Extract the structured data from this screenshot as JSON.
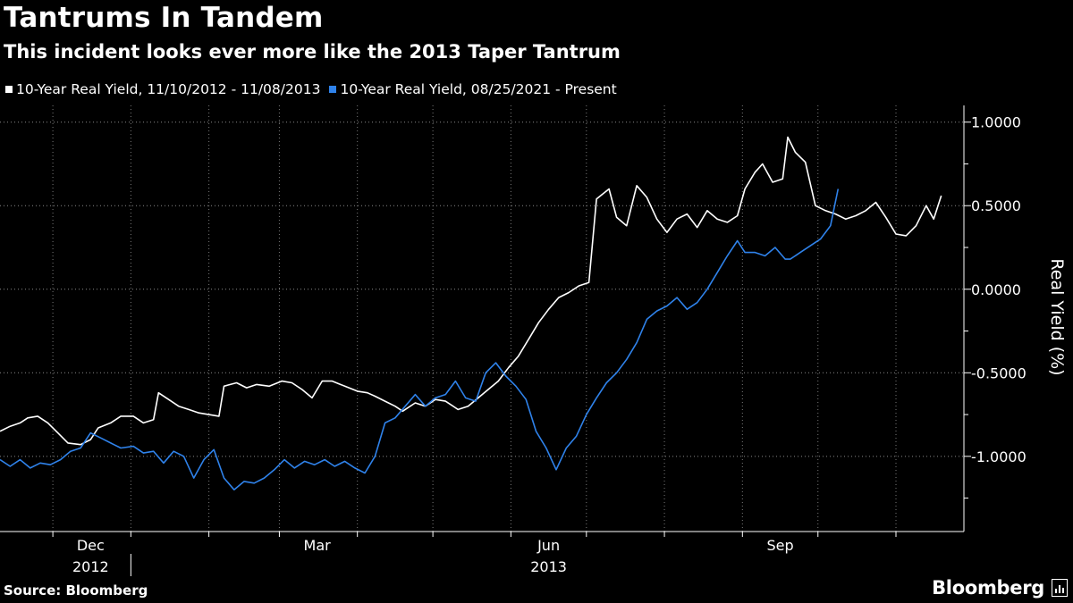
{
  "chart_data": {
    "type": "line",
    "title": "Tantrums In Tandem",
    "subtitle": "This incident looks ever more like the 2013 Taper Tantrum",
    "ylabel": "Real Yield (%)",
    "ylim": [
      -1.45,
      1.1
    ],
    "yticks": [
      1.0,
      0.5,
      0.0,
      -0.5,
      -1.0
    ],
    "ytick_labels": [
      "1.0000",
      "0.5000",
      "0.0000",
      "-0.5000",
      "-1.0000"
    ],
    "xlim": [
      "2012-11-10",
      "2013-11-28"
    ],
    "xticks": [
      {
        "date": "2012-12-01",
        "label": "Dec"
      },
      {
        "date": "2013-03-01",
        "label": "Mar"
      },
      {
        "date": "2013-06-01",
        "label": "Jun"
      },
      {
        "date": "2013-09-01",
        "label": "Sep"
      }
    ],
    "minor_ticks": [
      "2013-01-01",
      "2013-02-01",
      "2013-04-01",
      "2013-05-01",
      "2013-07-01",
      "2013-08-01",
      "2013-10-01",
      "2013-11-01"
    ],
    "year_labels": [
      {
        "date": "2012-12-01",
        "label": "2012"
      },
      {
        "date": "2013-06-01",
        "label": "2013"
      }
    ],
    "year_divider": "2013-01-01",
    "grid": true,
    "legend_position": "top-left",
    "series": [
      {
        "name": "10-Year Real Yield, 11/10/2012 - 11/08/2013",
        "color": "#ffffff",
        "points": [
          [
            "2012-11-10",
            -0.85
          ],
          [
            "2012-11-14",
            -0.82
          ],
          [
            "2012-11-18",
            -0.8
          ],
          [
            "2012-11-21",
            -0.77
          ],
          [
            "2012-11-25",
            -0.76
          ],
          [
            "2012-11-29",
            -0.8
          ],
          [
            "2012-12-03",
            -0.86
          ],
          [
            "2012-12-07",
            -0.92
          ],
          [
            "2012-12-12",
            -0.93
          ],
          [
            "2012-12-16",
            -0.9
          ],
          [
            "2012-12-19",
            -0.83
          ],
          [
            "2012-12-24",
            -0.8
          ],
          [
            "2012-12-28",
            -0.76
          ],
          [
            "2013-01-02",
            -0.76
          ],
          [
            "2013-01-06",
            -0.8
          ],
          [
            "2013-01-10",
            -0.78
          ],
          [
            "2013-01-12",
            -0.62
          ],
          [
            "2013-01-16",
            -0.66
          ],
          [
            "2013-01-20",
            -0.7
          ],
          [
            "2013-01-24",
            -0.72
          ],
          [
            "2013-01-28",
            -0.74
          ],
          [
            "2013-02-01",
            -0.75
          ],
          [
            "2013-02-05",
            -0.76
          ],
          [
            "2013-02-07",
            -0.58
          ],
          [
            "2013-02-12",
            -0.56
          ],
          [
            "2013-02-16",
            -0.59
          ],
          [
            "2013-02-20",
            -0.57
          ],
          [
            "2013-02-25",
            -0.58
          ],
          [
            "2013-03-02",
            -0.55
          ],
          [
            "2013-03-06",
            -0.56
          ],
          [
            "2013-03-10",
            -0.6
          ],
          [
            "2013-03-14",
            -0.65
          ],
          [
            "2013-03-18",
            -0.55
          ],
          [
            "2013-03-22",
            -0.55
          ],
          [
            "2013-03-27",
            -0.58
          ],
          [
            "2013-04-01",
            -0.61
          ],
          [
            "2013-04-05",
            -0.62
          ],
          [
            "2013-04-08",
            -0.64
          ],
          [
            "2013-04-12",
            -0.67
          ],
          [
            "2013-04-16",
            -0.7
          ],
          [
            "2013-04-19",
            -0.73
          ],
          [
            "2013-04-24",
            -0.68
          ],
          [
            "2013-04-28",
            -0.7
          ],
          [
            "2013-05-02",
            -0.66
          ],
          [
            "2013-05-06",
            -0.67
          ],
          [
            "2013-05-11",
            -0.72
          ],
          [
            "2013-05-15",
            -0.7
          ],
          [
            "2013-05-19",
            -0.65
          ],
          [
            "2013-05-23",
            -0.6
          ],
          [
            "2013-05-27",
            -0.55
          ],
          [
            "2013-05-31",
            -0.47
          ],
          [
            "2013-06-04",
            -0.4
          ],
          [
            "2013-06-08",
            -0.3
          ],
          [
            "2013-06-12",
            -0.2
          ],
          [
            "2013-06-16",
            -0.12
          ],
          [
            "2013-06-20",
            -0.05
          ],
          [
            "2013-06-24",
            -0.02
          ],
          [
            "2013-06-28",
            0.02
          ],
          [
            "2013-07-02",
            0.04
          ],
          [
            "2013-07-05",
            0.54
          ],
          [
            "2013-07-10",
            0.6
          ],
          [
            "2013-07-13",
            0.43
          ],
          [
            "2013-07-17",
            0.38
          ],
          [
            "2013-07-21",
            0.62
          ],
          [
            "2013-07-25",
            0.55
          ],
          [
            "2013-07-29",
            0.42
          ],
          [
            "2013-08-02",
            0.34
          ],
          [
            "2013-08-06",
            0.42
          ],
          [
            "2013-08-10",
            0.45
          ],
          [
            "2013-08-14",
            0.37
          ],
          [
            "2013-08-18",
            0.47
          ],
          [
            "2013-08-22",
            0.42
          ],
          [
            "2013-08-26",
            0.4
          ],
          [
            "2013-08-30",
            0.44
          ],
          [
            "2013-09-02",
            0.6
          ],
          [
            "2013-09-06",
            0.7
          ],
          [
            "2013-09-09",
            0.75
          ],
          [
            "2013-09-13",
            0.64
          ],
          [
            "2013-09-17",
            0.66
          ],
          [
            "2013-09-19",
            0.91
          ],
          [
            "2013-09-22",
            0.82
          ],
          [
            "2013-09-26",
            0.76
          ],
          [
            "2013-09-30",
            0.5
          ],
          [
            "2013-10-04",
            0.47
          ],
          [
            "2013-10-08",
            0.45
          ],
          [
            "2013-10-12",
            0.42
          ],
          [
            "2013-10-16",
            0.44
          ],
          [
            "2013-10-20",
            0.47
          ],
          [
            "2013-10-24",
            0.52
          ],
          [
            "2013-10-28",
            0.43
          ],
          [
            "2013-11-01",
            0.33
          ],
          [
            "2013-11-05",
            0.32
          ],
          [
            "2013-11-09",
            0.38
          ],
          [
            "2013-11-13",
            0.5
          ],
          [
            "2013-11-16",
            0.42
          ],
          [
            "2013-11-19",
            0.56
          ]
        ]
      },
      {
        "name": "10-Year Real Yield, 08/25/2021 - Present",
        "color": "#2f82ea",
        "points": [
          [
            "2012-11-10",
            -1.02
          ],
          [
            "2012-11-14",
            -1.06
          ],
          [
            "2012-11-18",
            -1.02
          ],
          [
            "2012-11-22",
            -1.07
          ],
          [
            "2012-11-26",
            -1.04
          ],
          [
            "2012-11-30",
            -1.05
          ],
          [
            "2012-12-04",
            -1.02
          ],
          [
            "2012-12-08",
            -0.97
          ],
          [
            "2012-12-12",
            -0.95
          ],
          [
            "2012-12-16",
            -0.86
          ],
          [
            "2012-12-20",
            -0.89
          ],
          [
            "2012-12-24",
            -0.92
          ],
          [
            "2012-12-28",
            -0.95
          ],
          [
            "2013-01-02",
            -0.94
          ],
          [
            "2013-01-06",
            -0.98
          ],
          [
            "2013-01-10",
            -0.97
          ],
          [
            "2013-01-14",
            -1.04
          ],
          [
            "2013-01-18",
            -0.97
          ],
          [
            "2013-01-22",
            -1.0
          ],
          [
            "2013-01-26",
            -1.13
          ],
          [
            "2013-01-30",
            -1.02
          ],
          [
            "2013-02-03",
            -0.96
          ],
          [
            "2013-02-07",
            -1.13
          ],
          [
            "2013-02-11",
            -1.2
          ],
          [
            "2013-02-15",
            -1.15
          ],
          [
            "2013-02-19",
            -1.16
          ],
          [
            "2013-02-23",
            -1.13
          ],
          [
            "2013-02-27",
            -1.08
          ],
          [
            "2013-03-03",
            -1.02
          ],
          [
            "2013-03-07",
            -1.07
          ],
          [
            "2013-03-11",
            -1.03
          ],
          [
            "2013-03-15",
            -1.05
          ],
          [
            "2013-03-19",
            -1.02
          ],
          [
            "2013-03-23",
            -1.06
          ],
          [
            "2013-03-27",
            -1.03
          ],
          [
            "2013-03-31",
            -1.07
          ],
          [
            "2013-04-04",
            -1.1
          ],
          [
            "2013-04-08",
            -1.0
          ],
          [
            "2013-04-12",
            -0.8
          ],
          [
            "2013-04-16",
            -0.77
          ],
          [
            "2013-04-20",
            -0.7
          ],
          [
            "2013-04-24",
            -0.63
          ],
          [
            "2013-04-28",
            -0.7
          ],
          [
            "2013-05-02",
            -0.65
          ],
          [
            "2013-05-06",
            -0.63
          ],
          [
            "2013-05-10",
            -0.55
          ],
          [
            "2013-05-14",
            -0.65
          ],
          [
            "2013-05-18",
            -0.67
          ],
          [
            "2013-05-22",
            -0.5
          ],
          [
            "2013-05-26",
            -0.44
          ],
          [
            "2013-05-30",
            -0.52
          ],
          [
            "2013-06-03",
            -0.58
          ],
          [
            "2013-06-07",
            -0.66
          ],
          [
            "2013-06-11",
            -0.85
          ],
          [
            "2013-06-15",
            -0.95
          ],
          [
            "2013-06-19",
            -1.08
          ],
          [
            "2013-06-23",
            -0.95
          ],
          [
            "2013-06-27",
            -0.88
          ],
          [
            "2013-07-01",
            -0.75
          ],
          [
            "2013-07-05",
            -0.65
          ],
          [
            "2013-07-09",
            -0.56
          ],
          [
            "2013-07-13",
            -0.5
          ],
          [
            "2013-07-17",
            -0.42
          ],
          [
            "2013-07-21",
            -0.32
          ],
          [
            "2013-07-25",
            -0.18
          ],
          [
            "2013-07-29",
            -0.13
          ],
          [
            "2013-08-02",
            -0.1
          ],
          [
            "2013-08-06",
            -0.05
          ],
          [
            "2013-08-10",
            -0.12
          ],
          [
            "2013-08-14",
            -0.08
          ],
          [
            "2013-08-18",
            0.0
          ],
          [
            "2013-08-22",
            0.1
          ],
          [
            "2013-08-26",
            0.2
          ],
          [
            "2013-08-30",
            0.29
          ],
          [
            "2013-09-02",
            0.22
          ],
          [
            "2013-09-06",
            0.22
          ],
          [
            "2013-09-10",
            0.2
          ],
          [
            "2013-09-14",
            0.25
          ],
          [
            "2013-09-18",
            0.18
          ],
          [
            "2013-09-20",
            0.18
          ],
          [
            "2013-09-24",
            0.22
          ],
          [
            "2013-09-28",
            0.26
          ],
          [
            "2013-10-02",
            0.3
          ],
          [
            "2013-10-06",
            0.38
          ],
          [
            "2013-10-09",
            0.6
          ]
        ]
      }
    ]
  },
  "source": "Source: Bloomberg",
  "brand": "Bloomberg"
}
